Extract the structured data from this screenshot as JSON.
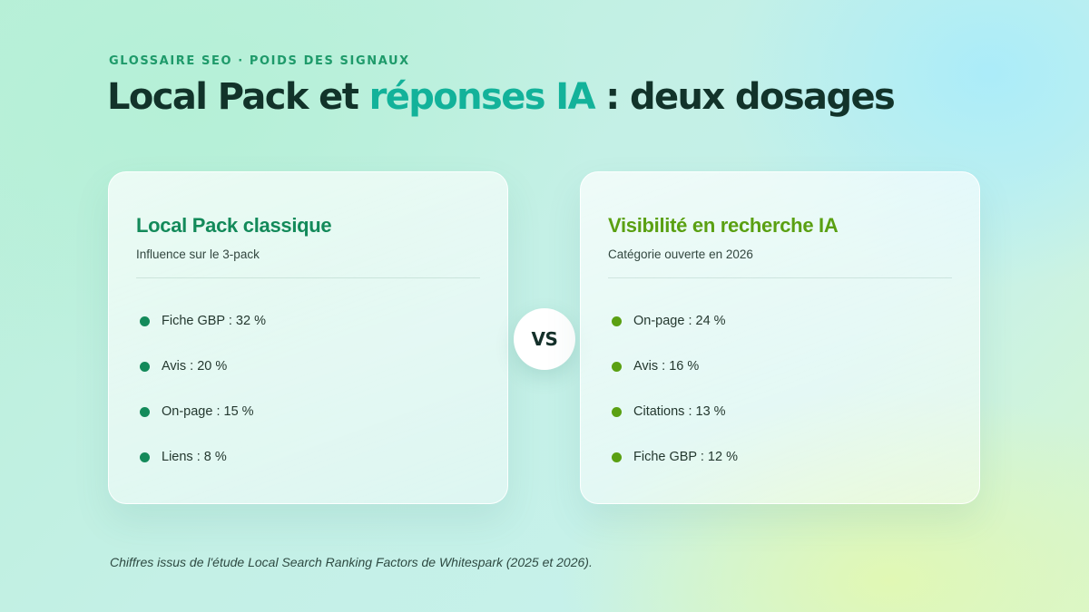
{
  "header": {
    "eyebrow": "GLOSSAIRE SEO · POIDS DES SIGNAUX",
    "title_part1": "Local Pack et ",
    "title_accent": "réponses IA",
    "title_part2": " : deux dosages"
  },
  "cards": [
    {
      "title": "Local Pack classique",
      "subtitle": "Influence sur le 3-pack",
      "items": [
        "Fiche GBP : 32 %",
        "Avis : 20 %",
        "On-page : 15 %",
        "Liens : 8 %"
      ]
    },
    {
      "title": "Visibilité en recherche IA",
      "subtitle": "Catégorie ouverte en 2026",
      "items": [
        "On-page : 24 %",
        "Avis : 16 %",
        "Citations : 13 %",
        "Fiche GBP : 12 %"
      ]
    }
  ],
  "vs_label": "VS",
  "footnote": "Chiffres issus de l'étude Local Search Ranking Factors de Whitespark (2025 et 2026).",
  "colors": {
    "left_accent": "#138a5a",
    "right_accent": "#5aa012",
    "title_accent": "#13b29a",
    "title_dark": "#12332a"
  }
}
